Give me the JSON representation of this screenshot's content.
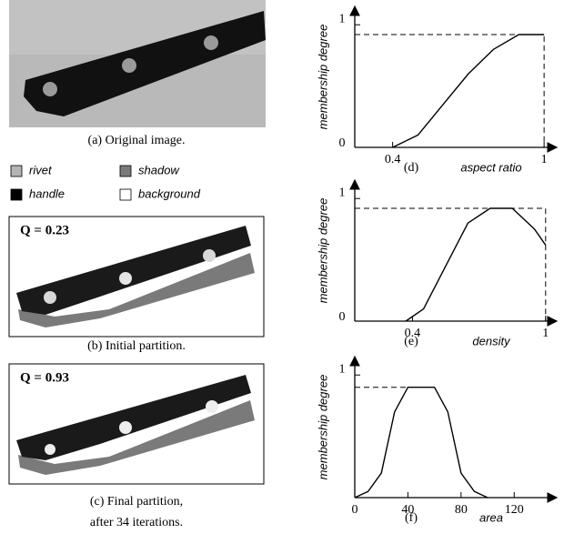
{
  "panels": [
    {
      "caption": "(a) Original image."
    },
    {
      "q_label": "Q = 0.23",
      "caption": "(b) Initial partition."
    },
    {
      "q_label": "Q = 0.93",
      "caption": "(c) Final partition,",
      "caption_line2": "after 34 iterations."
    }
  ],
  "legend": [
    {
      "label": "rivet",
      "color": "#b4b4b4"
    },
    {
      "label": "shadow",
      "color": "#7a7a7a"
    },
    {
      "label": "handle",
      "color": "#000000"
    },
    {
      "label": "background",
      "color": "#ffffff"
    }
  ],
  "chart_data": [
    {
      "type": "line",
      "caption": "(d)",
      "xlabel": "aspect ratio",
      "ylabel": "membership degree",
      "x": [
        0.4,
        0.5,
        0.6,
        0.7,
        0.8,
        0.9,
        1
      ],
      "values": [
        0,
        0.1,
        0.35,
        0.6,
        0.8,
        0.92,
        0.92
      ],
      "xlim": [
        0.25,
        1.05
      ],
      "ylim": [
        0,
        1.15
      ],
      "xticks": [
        0.4,
        1
      ],
      "yticks": [
        0,
        1
      ],
      "dashed_drop": true
    },
    {
      "type": "line",
      "caption": "(e)",
      "xlabel": "density",
      "ylabel": "membership degree",
      "x": [
        0.37,
        0.45,
        0.55,
        0.65,
        0.75,
        0.85,
        0.95,
        1
      ],
      "values": [
        0,
        0.1,
        0.45,
        0.8,
        0.92,
        0.92,
        0.75,
        0.62
      ],
      "xlim": [
        0.14,
        1.05
      ],
      "ylim": [
        0,
        1.15
      ],
      "xticks": [
        0.4,
        1
      ],
      "yticks": [
        0,
        1
      ],
      "dashed_drop": true
    },
    {
      "type": "line",
      "caption": "(f)",
      "xlabel": "area",
      "ylabel": "membership degree",
      "x": [
        0,
        10,
        20,
        30,
        40,
        60,
        70,
        80,
        90,
        100
      ],
      "values": [
        0,
        0.05,
        0.2,
        0.7,
        0.9,
        0.9,
        0.7,
        0.2,
        0.05,
        0
      ],
      "xlim": [
        0,
        152
      ],
      "ylim": [
        0,
        1.15
      ],
      "xticks": [
        0,
        40,
        80,
        120
      ],
      "yticks": [
        1
      ],
      "dashed_drop": false
    }
  ]
}
